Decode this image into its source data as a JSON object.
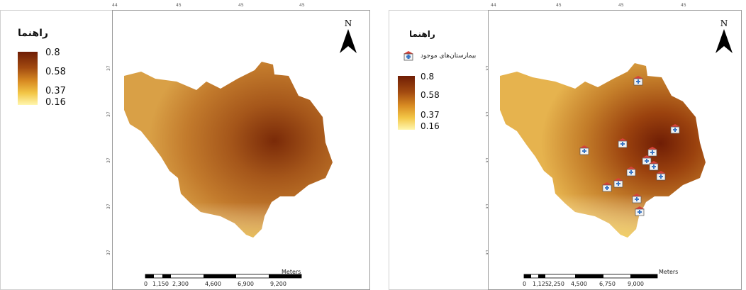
{
  "left_panel": {
    "legend_title": "راهنما",
    "legend_ticks": [
      "0.8",
      "0.58",
      "0.37",
      "0.16"
    ],
    "grid_top_labels": [
      "44",
      "45",
      "45",
      "45"
    ],
    "grid_side_labels": [
      "37",
      "37",
      "37",
      "37",
      "37"
    ],
    "north_letter": "N",
    "scale_unit": "Meters",
    "scale_ticks": [
      "0",
      "1,150",
      "2,300",
      "4,600",
      "6,900",
      "9,200"
    ]
  },
  "right_panel": {
    "legend_title": "راهنما",
    "hospital_legend_label": "بیمارستان‌های موجود",
    "legend_ticks": [
      "0.8",
      "0.58",
      "0.37",
      "0.16"
    ],
    "grid_top_labels": [
      "44",
      "45",
      "45",
      "45"
    ],
    "grid_side_labels": [
      "37",
      "37",
      "37",
      "37",
      "37"
    ],
    "north_letter": "N",
    "scale_unit": "Meters",
    "scale_ticks": [
      "0",
      "1,125",
      "2,250",
      "4,500",
      "6,750",
      "9,000"
    ]
  },
  "colors": {
    "ramp_high": "#6f1d05",
    "ramp_low": "#fff6ae",
    "frame": "#9a9a9a"
  },
  "icons": [
    "north-arrow-icon",
    "hospital-icon"
  ]
}
